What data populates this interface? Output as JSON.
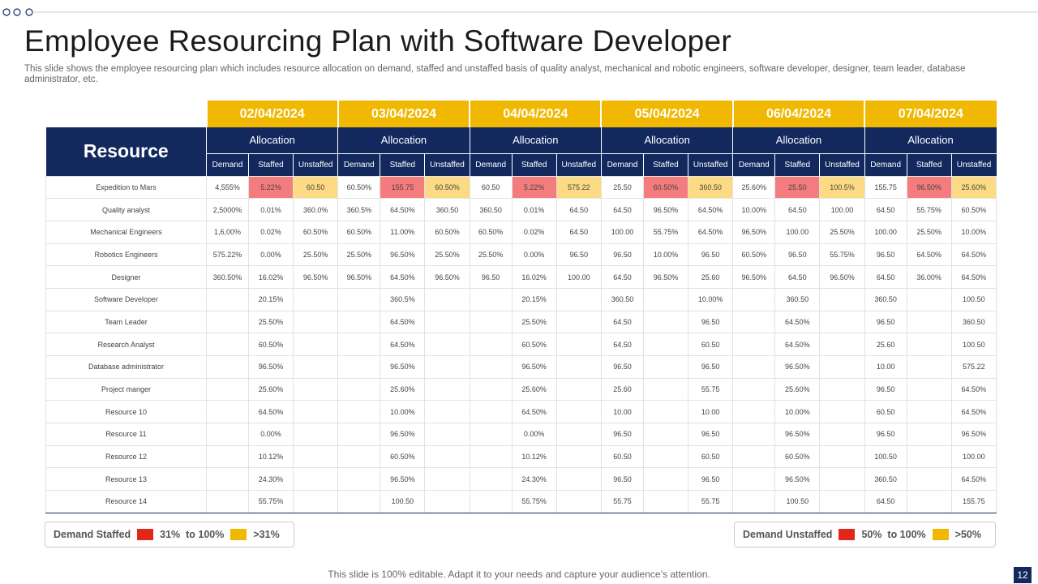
{
  "header": {
    "title": "Employee Resourcing Plan with Software Developer",
    "subtitle": "This slide shows the employee resourcing plan which includes resource allocation on demand, staffed and unstaffed basis of quality analyst, mechanical and robotic engineers, software developer, designer, team leader, database administrator, etc."
  },
  "table": {
    "resource_header": "Resource",
    "dates": [
      "02/04/2024",
      "03/04/2024",
      "04/04/2024",
      "05/04/2024",
      "06/04/2024",
      "07/04/2024"
    ],
    "allocation_label": "Allocation",
    "subheaders": [
      "Demand",
      "Staffed",
      "Unstaffed"
    ],
    "rows": [
      {
        "name": "Expedition to Mars",
        "cells": [
          "4,555%",
          "5.22%",
          "60.50",
          "60.50%",
          "155.75",
          "60.50%",
          "60.50",
          "5.22%",
          "575.22",
          "25.50",
          "60.50%",
          "360.50",
          "25.60%",
          "25.50",
          "100.5%",
          "155.75",
          "96.50%",
          "25.60%"
        ]
      },
      {
        "name": "Quality analyst",
        "cells": [
          "2,5000%",
          "0.01%",
          "360.0%",
          "360.5%",
          "64.50%",
          "360.50",
          "360.50",
          "0.01%",
          "64.50",
          "64.50",
          "96.50%",
          "64.50%",
          "10.00%",
          "64.50",
          "100.00",
          "64.50",
          "55.75%",
          "60.50%"
        ]
      },
      {
        "name": "Mechanical Engineers",
        "cells": [
          "1,6,00%",
          "0.02%",
          "60.50%",
          "60.50%",
          "11.00%",
          "60.50%",
          "60.50%",
          "0.02%",
          "64.50",
          "100.00",
          "55.75%",
          "64.50%",
          "96.50%",
          "100.00",
          "25.50%",
          "100.00",
          "25.50%",
          "10.00%"
        ]
      },
      {
        "name": "Robotics Engineers",
        "cells": [
          "575.22%",
          "0.00%",
          "25.50%",
          "25.50%",
          "96.50%",
          "25.50%",
          "25.50%",
          "0.00%",
          "96.50",
          "96.50",
          "10.00%",
          "96.50",
          "60.50%",
          "96.50",
          "55.75%",
          "96.50",
          "64.50%",
          "64.50%"
        ]
      },
      {
        "name": "Designer",
        "cells": [
          "360.50%",
          "16.02%",
          "96.50%",
          "96.50%",
          "64.50%",
          "96.50%",
          "96.50",
          "16.02%",
          "100.00",
          "64.50",
          "96.50%",
          "25.60",
          "96.50%",
          "64.50",
          "96.50%",
          "64.50",
          "36.00%",
          "64.50%"
        ]
      },
      {
        "name": "Software Developer",
        "cells": [
          null,
          "20.15%",
          null,
          null,
          "360.5%",
          null,
          null,
          "20.15%",
          null,
          "360.50",
          null,
          "10.00%",
          null,
          "360.50",
          null,
          "360.50",
          null,
          "100.50"
        ]
      },
      {
        "name": "Team Leader",
        "cells": [
          null,
          "25.50%",
          null,
          null,
          "64.50%",
          null,
          null,
          "25.50%",
          null,
          "64.50",
          null,
          "96.50",
          null,
          "64.50%",
          null,
          "96.50",
          null,
          "360.50"
        ]
      },
      {
        "name": "Research Analyst",
        "cells": [
          null,
          "60.50%",
          null,
          null,
          "64.50%",
          null,
          null,
          "60.50%",
          null,
          "64.50",
          null,
          "60.50",
          null,
          "64.50%",
          null,
          "25.60",
          null,
          "100.50"
        ]
      },
      {
        "name": "Database administrator",
        "cells": [
          null,
          "96.50%",
          null,
          null,
          "96.50%",
          null,
          null,
          "96.50%",
          null,
          "96.50",
          null,
          "96.50",
          null,
          "96.50%",
          null,
          "10.00",
          null,
          "575.22"
        ]
      },
      {
        "name": "Project manger",
        "cells": [
          null,
          "25.60%",
          null,
          null,
          "25.60%",
          null,
          null,
          "25.60%",
          null,
          "25.60",
          null,
          "55.75",
          null,
          "25.60%",
          null,
          "96.50",
          null,
          "64.50%"
        ]
      },
      {
        "name": "Resource 10",
        "cells": [
          null,
          "64.50%",
          null,
          null,
          "10.00%",
          null,
          null,
          "64.50%",
          null,
          "10.00",
          null,
          "10.00",
          null,
          "10.00%",
          null,
          "60.50",
          null,
          "64.50%"
        ]
      },
      {
        "name": "Resource 11",
        "cells": [
          null,
          "0.00%",
          null,
          null,
          "96.50%",
          null,
          null,
          "0.00%",
          null,
          "96.50",
          null,
          "96.50",
          null,
          "96.50%",
          null,
          "96.50",
          null,
          "96.50%"
        ]
      },
      {
        "name": "Resource 12",
        "cells": [
          null,
          "10.12%",
          null,
          null,
          "60.50%",
          null,
          null,
          "10.12%",
          null,
          "60.50",
          null,
          "60.50",
          null,
          "60.50%",
          null,
          "100.50",
          null,
          "100.00"
        ]
      },
      {
        "name": "Resource 13",
        "cells": [
          null,
          "24.30%",
          null,
          null,
          "96.50%",
          null,
          null,
          "24.30%",
          null,
          "96.50",
          null,
          "96.50",
          null,
          "96.50%",
          null,
          "360.50",
          null,
          "64.50%"
        ]
      },
      {
        "name": "Resource 14",
        "cells": [
          null,
          "55.75%",
          null,
          null,
          "100.50",
          null,
          null,
          "55.75%",
          null,
          "55.75",
          null,
          "55.75",
          null,
          "100.50",
          null,
          "64.50",
          null,
          "155.75"
        ]
      }
    ]
  },
  "legend_left": {
    "label": "Demand Staffed",
    "ranges": [
      "31%  to 100%",
      ">31%"
    ]
  },
  "legend_right": {
    "label": "Demand Unstaffed",
    "ranges": [
      "50%  to 100%",
      ">50%"
    ]
  },
  "footer": "This slide is 100% editable. Adapt it to your needs and capture your audience’s attention.",
  "page_number": "12"
}
